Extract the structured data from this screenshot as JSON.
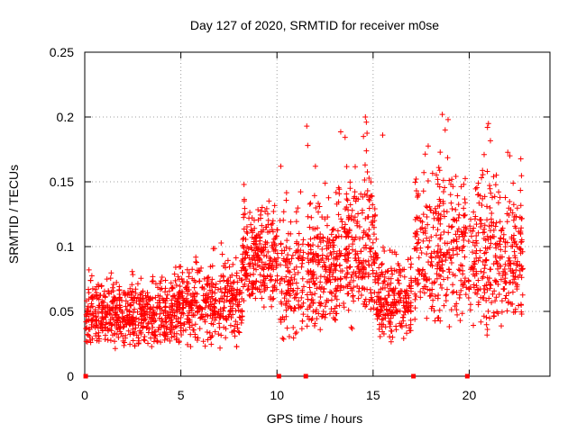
{
  "chart_data": {
    "type": "scatter",
    "title": "Day 127 of 2020, SRMTID for receiver m0se",
    "xlabel": "GPS time / hours",
    "ylabel": "SRMTID / TECUs",
    "xlim": [
      0,
      24.2
    ],
    "ylim": [
      0,
      0.25
    ],
    "xticks": [
      0,
      5,
      10,
      15,
      20
    ],
    "xtick_labels": [
      "0",
      "5",
      "10",
      "15",
      "20"
    ],
    "yticks": [
      0,
      0.05,
      0.1,
      0.15,
      0.2,
      0.25
    ],
    "ytick_labels": [
      "0",
      "0.05",
      "0.1",
      "0.15",
      "0.2",
      "0.25"
    ],
    "grid": true,
    "marker": "plus",
    "color": "#ff0000",
    "zero_markers_x": [
      0.05,
      10.1,
      11.5,
      17.1,
      19.9
    ],
    "segments": [
      {
        "x_start": 0.05,
        "x_end": 4.5,
        "y_min": 0.02,
        "y_max": 0.09,
        "n": 520
      },
      {
        "x_start": 4.5,
        "x_end": 8.2,
        "y_min": 0.02,
        "y_max": 0.11,
        "n": 420
      },
      {
        "x_start": 8.2,
        "x_end": 10.05,
        "y_min": 0.05,
        "y_max": 0.155,
        "n": 250
      },
      {
        "x_start": 10.15,
        "x_end": 11.4,
        "y_min": 0.02,
        "y_max": 0.16,
        "n": 140
      },
      {
        "x_start": 11.55,
        "x_end": 13.2,
        "y_min": 0.03,
        "y_max": 0.165,
        "n": 220
      },
      {
        "x_start": 13.2,
        "x_end": 15.2,
        "y_min": 0.03,
        "y_max": 0.2,
        "n": 260
      },
      {
        "x_start": 15.2,
        "x_end": 17.0,
        "y_min": 0.025,
        "y_max": 0.11,
        "n": 220
      },
      {
        "x_start": 17.15,
        "x_end": 19.85,
        "y_min": 0.03,
        "y_max": 0.2,
        "n": 300
      },
      {
        "x_start": 19.95,
        "x_end": 22.8,
        "y_min": 0.03,
        "y_max": 0.195,
        "n": 330
      }
    ],
    "outliers": [
      {
        "x": 11.55,
        "y": 0.193
      },
      {
        "x": 11.6,
        "y": 0.178
      },
      {
        "x": 14.6,
        "y": 0.2
      },
      {
        "x": 14.65,
        "y": 0.196
      },
      {
        "x": 14.5,
        "y": 0.185
      },
      {
        "x": 15.5,
        "y": 0.186
      },
      {
        "x": 18.6,
        "y": 0.202
      },
      {
        "x": 18.9,
        "y": 0.198
      },
      {
        "x": 18.75,
        "y": 0.19
      },
      {
        "x": 21.0,
        "y": 0.195
      },
      {
        "x": 20.95,
        "y": 0.192
      },
      {
        "x": 12.0,
        "y": 0.162
      },
      {
        "x": 10.2,
        "y": 0.162
      }
    ]
  }
}
